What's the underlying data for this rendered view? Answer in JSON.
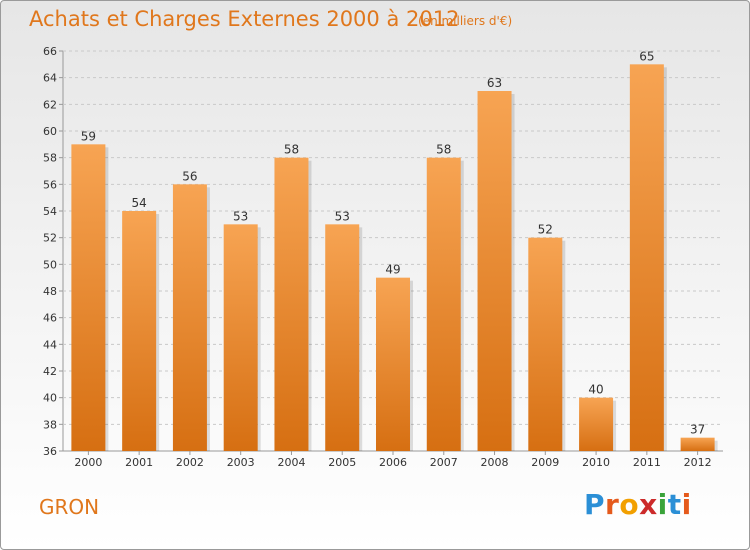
{
  "header": {
    "title": "Achats et Charges Externes 2000 à 2012",
    "subtitle": "(en milliers d'€)"
  },
  "commune": "GRON",
  "logo": {
    "text": "Proxiti",
    "letter_colors": [
      "#2b8fd6",
      "#e55a1c",
      "#f2a000",
      "#cc2a2a",
      "#3aa33a",
      "#2b8fd6",
      "#e55a1c"
    ]
  },
  "colors": {
    "bar_light": "#f7a453",
    "bar_dark": "#d66f12",
    "title": "#e0771c",
    "grid": "#c9c9c9"
  },
  "chart_data": {
    "type": "bar",
    "title": "Achats et Charges Externes 2000 à 2012",
    "subtitle": "(en milliers d'€)",
    "categories": [
      "2000",
      "2001",
      "2002",
      "2003",
      "2004",
      "2005",
      "2006",
      "2007",
      "2008",
      "2009",
      "2010",
      "2011",
      "2012"
    ],
    "values": [
      59,
      54,
      56,
      53,
      58,
      53,
      49,
      58,
      63,
      52,
      40,
      65,
      37
    ],
    "ylim": [
      36,
      66
    ],
    "yticks": [
      36,
      38,
      40,
      42,
      44,
      46,
      48,
      50,
      52,
      54,
      56,
      58,
      60,
      62,
      64,
      66
    ],
    "grid": "dashed horizontal",
    "xlabel": "",
    "ylabel": ""
  }
}
